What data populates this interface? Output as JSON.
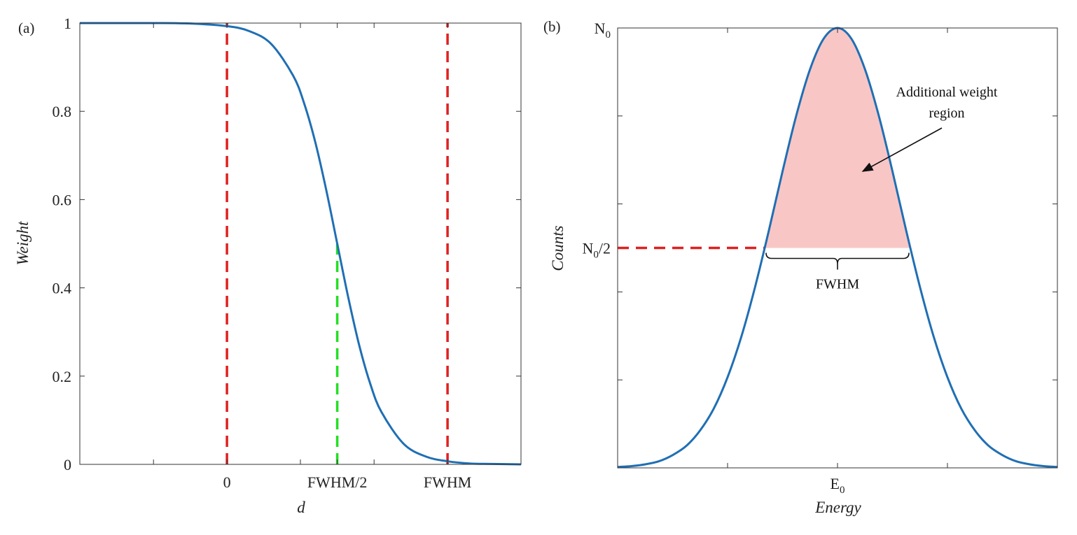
{
  "chart_data": [
    {
      "panel_label": "(a)",
      "type": "line",
      "xlabel": "d",
      "ylabel": "Weight",
      "xlim": [
        -0.667,
        1.333
      ],
      "ylim": [
        0,
        1
      ],
      "x_unit": "FWHM",
      "x_ticks": [
        -0.333,
        0,
        0.333,
        0.5,
        0.667,
        1
      ],
      "x_tick_labels": [
        {
          "value": 0,
          "label": "0"
        },
        {
          "value": 0.5,
          "label": "FWHM/2"
        },
        {
          "value": 1,
          "label": "FWHM"
        }
      ],
      "y_ticks": [
        0,
        0.2,
        0.4,
        0.6,
        0.8,
        1
      ],
      "y_tick_labels": [
        "0",
        "0.2",
        "0.4",
        "0.6",
        "0.8",
        "1"
      ],
      "grid": false,
      "series": [
        {
          "color": "#1f6fb4",
          "x": [
            -0.667,
            -0.5,
            -0.333,
            -0.167,
            0,
            0.1,
            0.2,
            0.3,
            0.35,
            0.4,
            0.45,
            0.5,
            0.55,
            0.6,
            0.65,
            0.7,
            0.8,
            0.9,
            1.0,
            1.1,
            1.2,
            1.333
          ],
          "y": [
            1.0,
            1.0,
            1.0,
            0.999,
            0.993,
            0.982,
            0.953,
            0.881,
            0.818,
            0.731,
            0.622,
            0.5,
            0.378,
            0.269,
            0.182,
            0.119,
            0.047,
            0.018,
            0.007,
            0.002,
            0.001,
            0.0
          ]
        }
      ],
      "reference_lines": [
        {
          "orientation": "vertical",
          "x": 0,
          "y_range": [
            0,
            1
          ],
          "color": "#e02020",
          "style": "dashed"
        },
        {
          "orientation": "vertical",
          "x": 1,
          "y_range": [
            0,
            1
          ],
          "color": "#e02020",
          "style": "dashed"
        },
        {
          "orientation": "vertical",
          "x": 0.5,
          "y_range": [
            0,
            0.5
          ],
          "color": "#22e022",
          "style": "dashed"
        }
      ]
    },
    {
      "panel_label": "(b)",
      "type": "line",
      "xlabel": "Energy",
      "ylabel": "Counts",
      "xlim": [
        -2,
        2
      ],
      "ylim": [
        0,
        1
      ],
      "x_ticks": [
        -1,
        0,
        1
      ],
      "x_tick_labels": [
        {
          "value": 0,
          "label": "E",
          "sub": "0"
        }
      ],
      "y_ticks": [
        0.2,
        0.4,
        0.6,
        0.8,
        1
      ],
      "y_tick_labels": [
        {
          "value": 1,
          "label": "N",
          "sub": "0",
          "suffix": ""
        },
        {
          "value": 0.5,
          "label": "N",
          "sub": "0",
          "suffix": "/2"
        }
      ],
      "grid": false,
      "series": [
        {
          "color": "#1f6fb4",
          "x": [
            -2,
            -1.875,
            -1.75,
            -1.625,
            -1.5,
            -1.375,
            -1.25,
            -1.125,
            -1,
            -0.875,
            -0.75,
            -0.625,
            -0.5,
            -0.375,
            -0.25,
            -0.125,
            0,
            0.125,
            0.25,
            0.375,
            0.5,
            0.625,
            0.75,
            0.875,
            1,
            1.125,
            1.25,
            1.375,
            1.5,
            1.625,
            1.75,
            1.875,
            2
          ],
          "y": [
            0.002,
            0.004,
            0.008,
            0.015,
            0.029,
            0.05,
            0.085,
            0.135,
            0.206,
            0.298,
            0.411,
            0.539,
            0.674,
            0.801,
            0.906,
            0.976,
            1,
            0.976,
            0.906,
            0.801,
            0.674,
            0.539,
            0.411,
            0.298,
            0.206,
            0.135,
            0.085,
            0.05,
            0.029,
            0.015,
            0.008,
            0.004,
            0.002
          ]
        }
      ],
      "half_max_level": 0.5,
      "half_max_line": {
        "color": "#e02020",
        "style": "dashed"
      },
      "fwhm_range": [
        -0.6625,
        0.6625
      ],
      "fwhm_label": "FWHM",
      "fill_region": {
        "label_line1": "Additional weight",
        "label_line2": "region",
        "color": "#f9c6c6"
      }
    }
  ]
}
